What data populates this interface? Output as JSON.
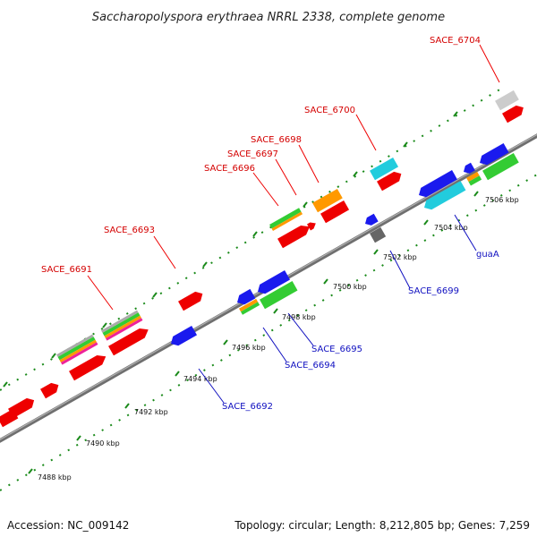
{
  "title": "Saccharopolyspora erythraea NRRL 2338, complete genome",
  "footer": {
    "accession": "Accession: NC_009142",
    "summary": "Topology: circular; Length: 8,212,805 bp; Genes: 7,259"
  },
  "colors": {
    "backbone": "#888888",
    "forward_label": "#d40000",
    "reverse_label": "#1010c0",
    "tick": "#1a8a1a",
    "cds_red": "#ee0000",
    "cds_blue": "#1a1aee",
    "cds_green": "#33cc33",
    "cds_orange": "#ff9900",
    "cds_cyan": "#22ccdd",
    "cds_gray": "#cccccc",
    "cds_darkgray": "#666666",
    "cds_magenta": "#ee2299"
  },
  "ticks": [
    {
      "label": "7488 kbp",
      "kbp": 7488
    },
    {
      "label": "7490 kbp",
      "kbp": 7490
    },
    {
      "label": "7492 kbp",
      "kbp": 7492
    },
    {
      "label": "7494 kbp",
      "kbp": 7494
    },
    {
      "label": "7496 kbp",
      "kbp": 7496
    },
    {
      "label": "7498 kbp",
      "kbp": 7498
    },
    {
      "label": "7500 kbp",
      "kbp": 7500
    },
    {
      "label": "7502 kbp",
      "kbp": 7502
    },
    {
      "label": "7504 kbp",
      "kbp": 7504
    },
    {
      "label": "7506 kbp",
      "kbp": 7506
    }
  ],
  "forward_labels": [
    {
      "text": "SACE_6691"
    },
    {
      "text": "SACE_6693"
    },
    {
      "text": "SACE_6696"
    },
    {
      "text": "SACE_6697"
    },
    {
      "text": "SACE_6698"
    },
    {
      "text": "SACE_6700"
    },
    {
      "text": "SACE_6704"
    }
  ],
  "reverse_labels": [
    {
      "text": "SACE_6692"
    },
    {
      "text": "SACE_6694"
    },
    {
      "text": "SACE_6695"
    },
    {
      "text": "SACE_6699"
    },
    {
      "text": "guaA"
    }
  ]
}
